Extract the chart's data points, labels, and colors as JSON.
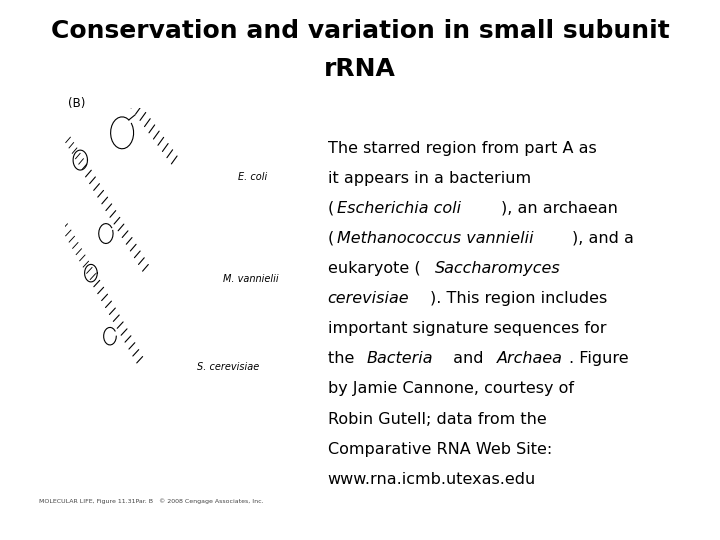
{
  "title_line1": "Conservation and variation in small subunit",
  "title_line2": "rRNA",
  "title_fontsize": 18,
  "title_fontweight": "bold",
  "background_color": "#ffffff",
  "text_color": "#000000",
  "panel_label": "(B)",
  "caption_fontsize": 11.5,
  "footer_text": "MOLECULAR LIFE, Figure 11.31Par. B   © 2008 Cengage Associates, Inc.",
  "footer_fontsize": 5.5,
  "label_ecoli": "E. coli",
  "label_mvannielii": "M. vannielii",
  "label_scerevisiae": "S. cerevisiae",
  "line_data": [
    [
      [
        "The starred region from part A as",
        false
      ]
    ],
    [
      [
        "it appears in a bacterium",
        false
      ]
    ],
    [
      [
        "(",
        false
      ],
      [
        "Escherichia coli",
        true
      ],
      [
        "), an archaean",
        false
      ]
    ],
    [
      [
        "(",
        false
      ],
      [
        "Methanococcus vannielii",
        true
      ],
      [
        "), and a",
        false
      ]
    ],
    [
      [
        "eukaryote (",
        false
      ],
      [
        "Saccharomyces",
        true
      ]
    ],
    [
      [
        "cerevisiae",
        true
      ],
      [
        "). This region includes",
        false
      ]
    ],
    [
      [
        "important signature sequences for",
        false
      ]
    ],
    [
      [
        "the ",
        false
      ],
      [
        "Bacteria",
        true
      ],
      [
        " and ",
        false
      ],
      [
        "Archaea",
        true
      ],
      [
        ". Figure",
        false
      ]
    ],
    [
      [
        "by Jamie Cannone, courtesy of",
        false
      ]
    ],
    [
      [
        "Robin Gutell; data from the",
        false
      ]
    ],
    [
      [
        "Comparative RNA Web Site:",
        false
      ]
    ],
    [
      [
        "www.rna.icmb.utexas.edu",
        false
      ]
    ]
  ]
}
